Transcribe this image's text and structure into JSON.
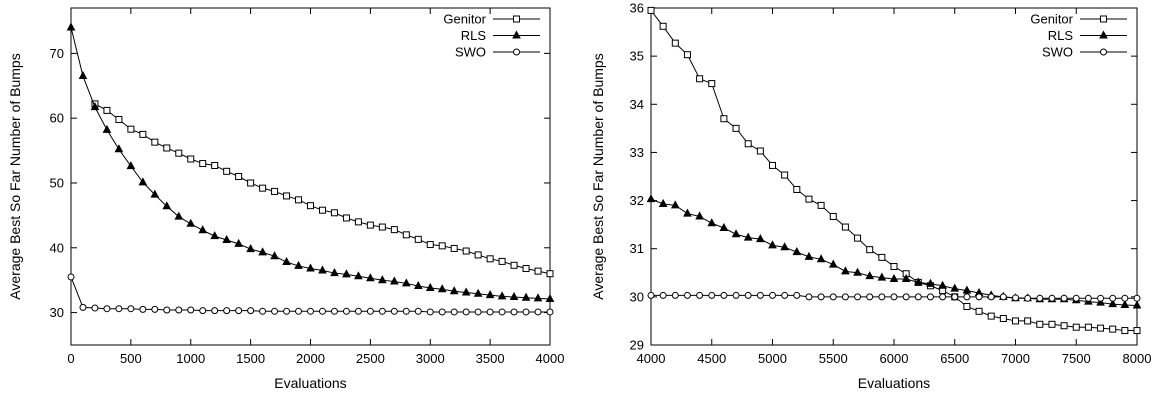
{
  "chart_data": [
    {
      "type": "line",
      "xlabel": "Evaluations",
      "ylabel": "Average Best So Far Number of Bumps",
      "xlim": [
        0,
        4000
      ],
      "ylim": [
        25,
        77
      ],
      "xticks": [
        0,
        500,
        1000,
        1500,
        2000,
        2500,
        3000,
        3500,
        4000
      ],
      "yticks": [
        30,
        40,
        50,
        60,
        70
      ],
      "grid": false,
      "legend": "top-right",
      "series": [
        {
          "name": "Genitor",
          "marker": "square",
          "x": [
            200,
            300,
            400,
            500,
            600,
            700,
            800,
            900,
            1000,
            1100,
            1200,
            1300,
            1400,
            1500,
            1600,
            1700,
            1800,
            1900,
            2000,
            2100,
            2200,
            2300,
            2400,
            2500,
            2600,
            2700,
            2800,
            2900,
            3000,
            3100,
            3200,
            3300,
            3400,
            3500,
            3600,
            3700,
            3800,
            3900,
            4000
          ],
          "y": [
            62.2,
            61.2,
            59.8,
            58.3,
            57.5,
            56.3,
            55.4,
            54.6,
            53.7,
            53.0,
            52.7,
            51.8,
            51.0,
            50.0,
            49.2,
            48.7,
            48.0,
            47.4,
            46.5,
            45.8,
            45.4,
            44.6,
            44.0,
            43.5,
            43.2,
            42.8,
            42.0,
            41.3,
            40.5,
            40.3,
            39.9,
            39.5,
            38.9,
            38.3,
            37.9,
            37.3,
            36.8,
            36.4,
            36.0
          ]
        },
        {
          "name": "RLS",
          "marker": "triangle",
          "x": [
            0,
            100,
            200,
            300,
            400,
            500,
            600,
            700,
            800,
            900,
            1000,
            1100,
            1200,
            1300,
            1400,
            1500,
            1600,
            1700,
            1800,
            1900,
            2000,
            2100,
            2200,
            2300,
            2400,
            2500,
            2600,
            2700,
            2800,
            2900,
            3000,
            3100,
            3200,
            3300,
            3400,
            3500,
            3600,
            3700,
            3800,
            3900,
            4000
          ],
          "y": [
            74.0,
            66.5,
            61.7,
            58.2,
            55.2,
            52.6,
            50.1,
            48.2,
            46.4,
            44.8,
            43.7,
            42.7,
            41.8,
            41.2,
            40.6,
            39.8,
            39.3,
            38.7,
            37.8,
            37.2,
            36.8,
            36.5,
            36.1,
            35.9,
            35.6,
            35.3,
            35.0,
            34.8,
            34.5,
            34.1,
            33.8,
            33.6,
            33.3,
            33.1,
            32.9,
            32.7,
            32.5,
            32.4,
            32.3,
            32.2,
            32.1
          ]
        },
        {
          "name": "SWO",
          "marker": "circle",
          "x": [
            0,
            100,
            200,
            300,
            400,
            500,
            600,
            700,
            800,
            900,
            1000,
            1100,
            1200,
            1300,
            1400,
            1500,
            1600,
            1700,
            1800,
            1900,
            2000,
            2100,
            2200,
            2300,
            2400,
            2500,
            2600,
            2700,
            2800,
            2900,
            3000,
            3100,
            3200,
            3300,
            3400,
            3500,
            3600,
            3700,
            3800,
            3900,
            4000
          ],
          "y": [
            35.5,
            30.8,
            30.7,
            30.6,
            30.6,
            30.6,
            30.5,
            30.5,
            30.4,
            30.4,
            30.4,
            30.3,
            30.3,
            30.3,
            30.3,
            30.3,
            30.2,
            30.2,
            30.2,
            30.2,
            30.2,
            30.2,
            30.2,
            30.2,
            30.2,
            30.2,
            30.2,
            30.2,
            30.2,
            30.2,
            30.1,
            30.1,
            30.1,
            30.1,
            30.1,
            30.1,
            30.1,
            30.1,
            30.1,
            30.1,
            30.1
          ]
        }
      ]
    },
    {
      "type": "line",
      "xlabel": "Evaluations",
      "ylabel": "Average Best So Far Number of Bumps",
      "xlim": [
        4000,
        8000
      ],
      "ylim": [
        29,
        36
      ],
      "xticks": [
        4000,
        4500,
        5000,
        5500,
        6000,
        6500,
        7000,
        7500,
        8000
      ],
      "yticks": [
        29,
        30,
        31,
        32,
        33,
        34,
        35,
        36
      ],
      "grid": false,
      "legend": "top-right",
      "series": [
        {
          "name": "Genitor",
          "marker": "square",
          "x": [
            4000,
            4100,
            4200,
            4300,
            4400,
            4500,
            4600,
            4700,
            4800,
            4900,
            5000,
            5100,
            5200,
            5300,
            5400,
            5500,
            5600,
            5700,
            5800,
            5900,
            6000,
            6100,
            6200,
            6300,
            6400,
            6500,
            6600,
            6700,
            6800,
            6900,
            7000,
            7100,
            7200,
            7300,
            7400,
            7500,
            7600,
            7700,
            7800,
            7900,
            8000
          ],
          "y": [
            35.95,
            35.62,
            35.27,
            35.03,
            34.53,
            34.43,
            33.7,
            33.5,
            33.18,
            33.03,
            32.73,
            32.53,
            32.23,
            32.03,
            31.9,
            31.67,
            31.45,
            31.22,
            30.98,
            30.82,
            30.63,
            30.48,
            30.3,
            30.23,
            30.13,
            30.0,
            29.8,
            29.7,
            29.6,
            29.55,
            29.5,
            29.5,
            29.43,
            29.43,
            29.4,
            29.37,
            29.37,
            29.35,
            29.33,
            29.3,
            29.3
          ]
        },
        {
          "name": "RLS",
          "marker": "triangle",
          "x": [
            4000,
            4100,
            4200,
            4300,
            4400,
            4500,
            4600,
            4700,
            4800,
            4900,
            5000,
            5100,
            5200,
            5300,
            5400,
            5500,
            5600,
            5700,
            5800,
            5900,
            6000,
            6100,
            6200,
            6300,
            6400,
            6500,
            6600,
            6700,
            6800,
            6900,
            7000,
            7100,
            7200,
            7300,
            7400,
            7500,
            7600,
            7700,
            7800,
            7900,
            8000
          ],
          "y": [
            32.03,
            31.93,
            31.9,
            31.73,
            31.67,
            31.53,
            31.43,
            31.3,
            31.23,
            31.2,
            31.07,
            31.03,
            30.93,
            30.83,
            30.78,
            30.67,
            30.53,
            30.5,
            30.43,
            30.4,
            30.37,
            30.37,
            30.3,
            30.27,
            30.23,
            30.17,
            30.13,
            30.08,
            30.03,
            30.0,
            29.97,
            29.97,
            29.95,
            29.95,
            29.95,
            29.93,
            29.9,
            29.88,
            29.85,
            29.83,
            29.82
          ]
        },
        {
          "name": "SWO",
          "marker": "circle",
          "x": [
            4000,
            4100,
            4200,
            4300,
            4400,
            4500,
            4600,
            4700,
            4800,
            4900,
            5000,
            5100,
            5200,
            5300,
            5400,
            5500,
            5600,
            5700,
            5800,
            5900,
            6000,
            6100,
            6200,
            6300,
            6400,
            6500,
            6600,
            6700,
            6800,
            6900,
            7000,
            7100,
            7200,
            7300,
            7400,
            7500,
            7600,
            7700,
            7800,
            7900,
            8000
          ],
          "y": [
            30.03,
            30.03,
            30.03,
            30.03,
            30.03,
            30.03,
            30.03,
            30.03,
            30.03,
            30.03,
            30.03,
            30.03,
            30.03,
            30.0,
            30.0,
            30.0,
            30.0,
            30.0,
            30.0,
            30.0,
            30.0,
            30.0,
            30.0,
            30.0,
            30.0,
            30.0,
            30.0,
            30.0,
            30.0,
            30.0,
            29.98,
            29.97,
            29.97,
            29.97,
            29.97,
            29.97,
            29.97,
            29.97,
            29.97,
            29.97,
            29.97
          ]
        }
      ]
    }
  ]
}
